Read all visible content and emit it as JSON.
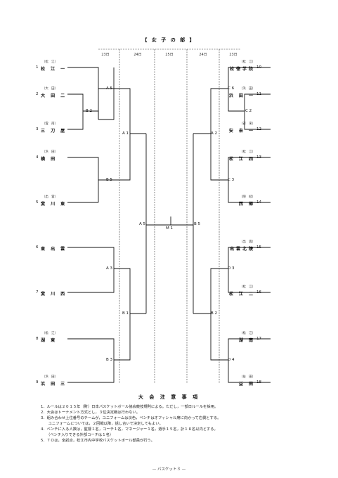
{
  "title": "【 女 子 の 部 】",
  "dates": [
    "23日",
    "24日",
    "25日",
    "24日",
    "23日"
  ],
  "left_teams": [
    {
      "num": "1",
      "pref": "（松　江）",
      "name": "松 江 一"
    },
    {
      "num": "2",
      "pref": "（大　田）",
      "name": "大 田 二"
    },
    {
      "num": "3",
      "pref": "（雲　南）",
      "name": "三 刀 屋"
    },
    {
      "num": "4",
      "pref": "（浜　田）",
      "name": "横 田"
    },
    {
      "num": "5",
      "pref": "（出　雲）",
      "name": "斐 川 東"
    },
    {
      "num": "6",
      "pref": "",
      "name": "東 出 雲"
    },
    {
      "num": "7",
      "pref": "",
      "name": "斐 川 西"
    },
    {
      "num": "8",
      "pref": "（松　江）",
      "name": "湖 東"
    },
    {
      "num": "9",
      "pref": "（浜　田）",
      "name": "浜 田 三"
    }
  ],
  "right_teams": [
    {
      "num": "10",
      "pref": "（松　江）",
      "name": "松徳学院"
    },
    {
      "num": "11",
      "pref": "（浜　田）",
      "name": "浜 田 一"
    },
    {
      "num": "12",
      "pref": "（安　来）",
      "name": "安 来 一"
    },
    {
      "num": "13",
      "pref": "（松　江）",
      "name": "松 江 四"
    },
    {
      "num": "14",
      "pref": "（隠　岐）",
      "name": "西 郷"
    },
    {
      "num": "15",
      "pref": "（出　雲）",
      "name": "出雲北陵"
    },
    {
      "num": "16",
      "pref": "（松　江）",
      "name": "松 江 二"
    },
    {
      "num": "17",
      "pref": "（松　江）",
      "name": "湖 南"
    },
    {
      "num": "18",
      "pref": "（益　田）",
      "name": "益 田"
    }
  ],
  "game_labels": {
    "a5l": "A 5",
    "b2": "B 2",
    "a1": "A 1",
    "b5l": "B 5",
    "a5c": "A 5",
    "m1": "M 1",
    "b5c": "B 5",
    "a3": "A 3",
    "b1": "B 1",
    "b3": "B 3",
    "c6": "C 6",
    "c2": "C 2",
    "a2": "A 2",
    "c3": "C 3",
    "d3": "D 3",
    "b2r": "B 2",
    "d4": "D 4"
  },
  "notes_title": "大 会 注 意 事 項",
  "notes": [
    "1．ルールは２０１５年（財）日本バスケットボール協会競技規則による。ただし，一部日ルールを採用。",
    "2．大会はトーナメント方式とし，３位決定戦は行わない。",
    "3．組み合わせ上位番号のチームが，ユニフォームは淡色，ベンチはオフィシャル席に向かって右側とする。",
    "　　ユニフォームについては，２回戦以降，話し合いで決定してもよい。",
    "4．ベンチに入る人数は，監督１名，コーチ１名，マネージャー１名，選手１５名，計１８名以内とする。",
    "　　（ベンチ入りできる外部コーチは１名）",
    "5．ＴＯは，全試合，松江市内中学校バスケットボール部員が行う。"
  ],
  "footer": "— バスケット３ —"
}
